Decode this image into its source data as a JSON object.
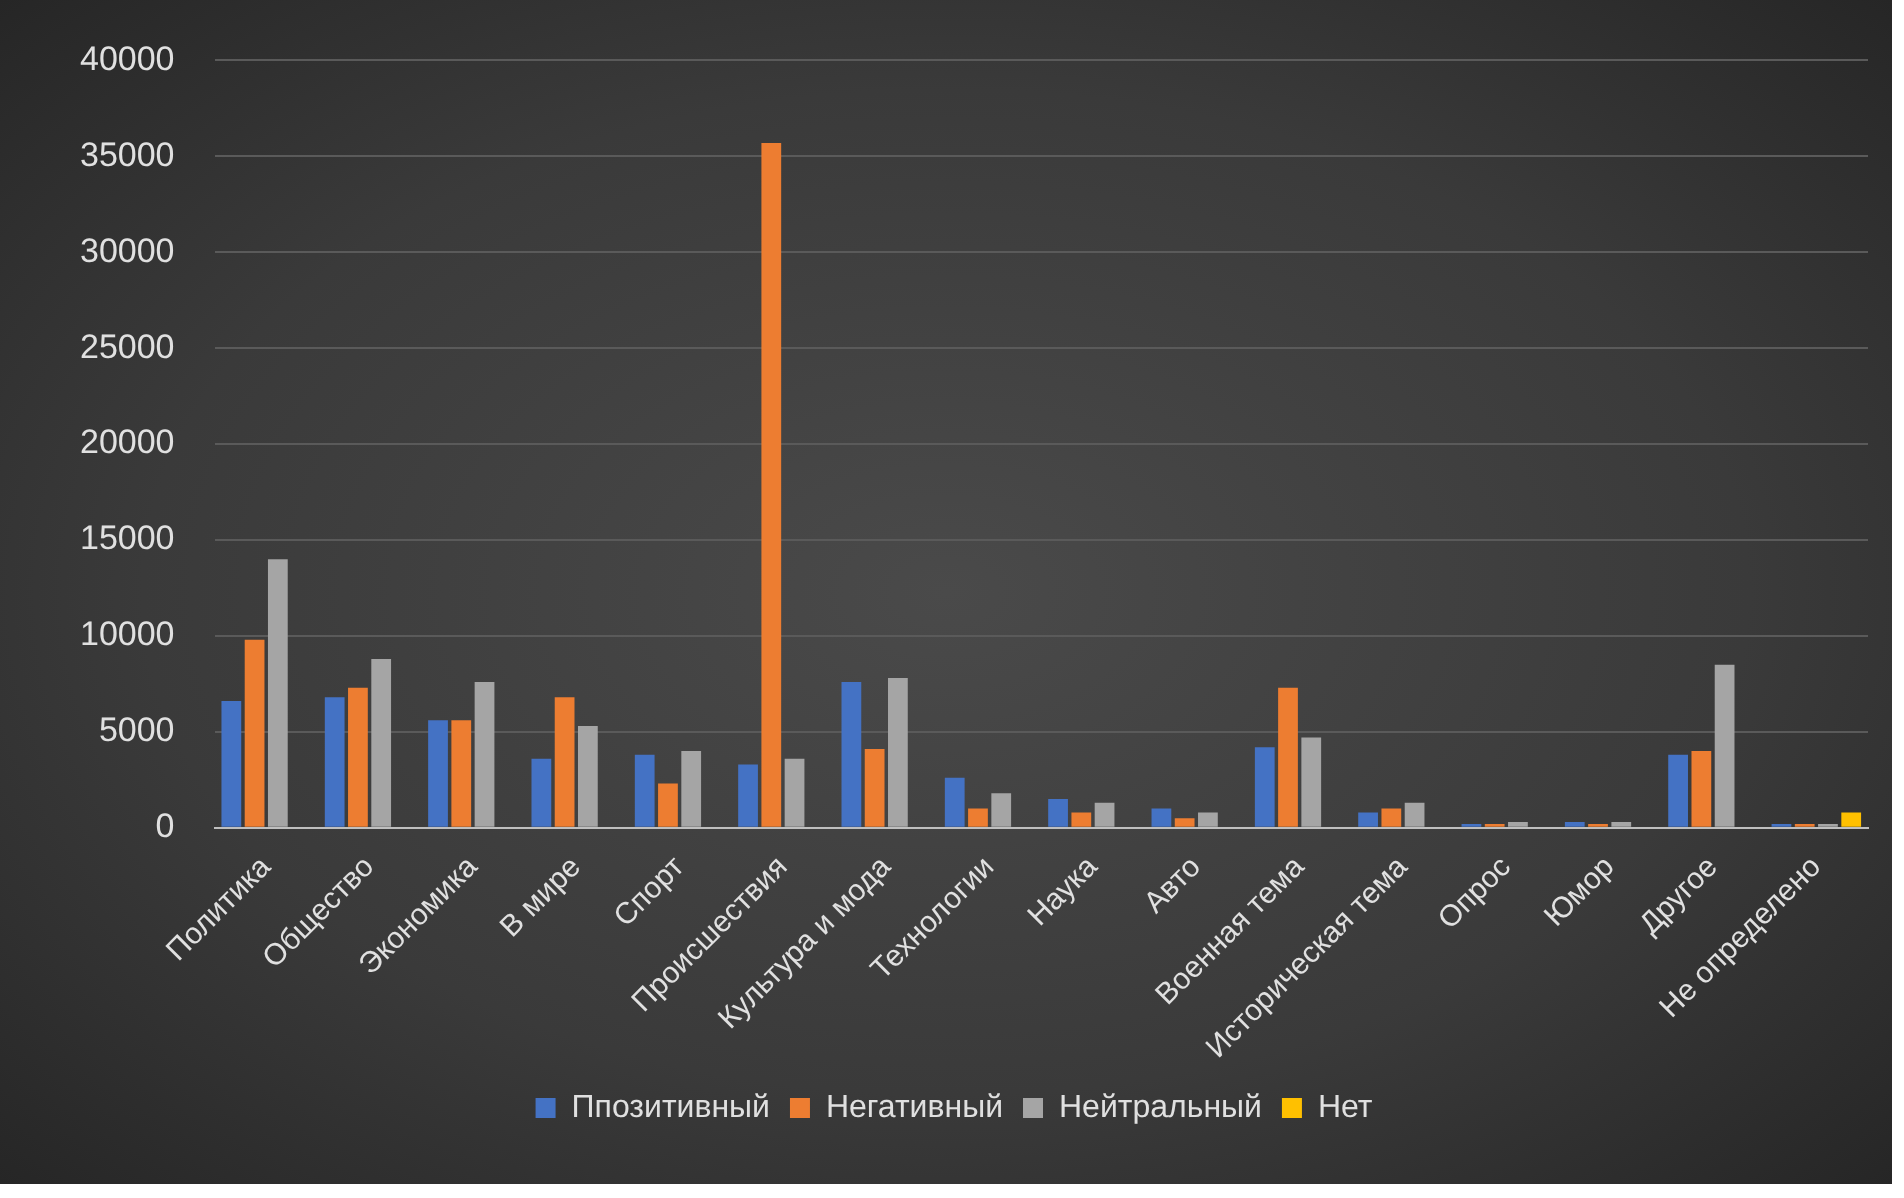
{
  "chart_data": {
    "type": "bar",
    "categories": [
      "Политика",
      "Общество",
      "Экономика",
      "В мире",
      "Спорт",
      "Происшествия",
      "Культура и мода",
      "Технологии",
      "Наука",
      "Авто",
      "Военная тема",
      "Историческая тема",
      "Опрос",
      "Юмор",
      "Другое",
      "Не определено"
    ],
    "series": [
      {
        "name": "Ппозитивный",
        "color": "#4472c4",
        "values": [
          6600,
          6800,
          5600,
          3600,
          3800,
          3300,
          7600,
          2600,
          1500,
          1000,
          4200,
          800,
          200,
          300,
          3800,
          200
        ]
      },
      {
        "name": "Негативный",
        "color": "#ed7d31",
        "values": [
          9800,
          7300,
          5600,
          6800,
          2300,
          35700,
          4100,
          1000,
          800,
          500,
          7300,
          1000,
          200,
          200,
          4000,
          200
        ]
      },
      {
        "name": "Нейтральный",
        "color": "#a5a5a5",
        "values": [
          14000,
          8800,
          7600,
          5300,
          4000,
          3600,
          7800,
          1800,
          1300,
          800,
          4700,
          1300,
          300,
          300,
          8500,
          200
        ]
      },
      {
        "name": "Нет",
        "color": "#ffc000",
        "values": [
          0,
          0,
          0,
          0,
          0,
          0,
          0,
          0,
          0,
          0,
          0,
          0,
          0,
          0,
          0,
          800
        ]
      }
    ],
    "ylim": [
      0,
      40000
    ],
    "yticks": [
      0,
      5000,
      10000,
      15000,
      20000,
      25000,
      30000,
      35000,
      40000
    ],
    "grid": "y",
    "legend": "bottom"
  }
}
